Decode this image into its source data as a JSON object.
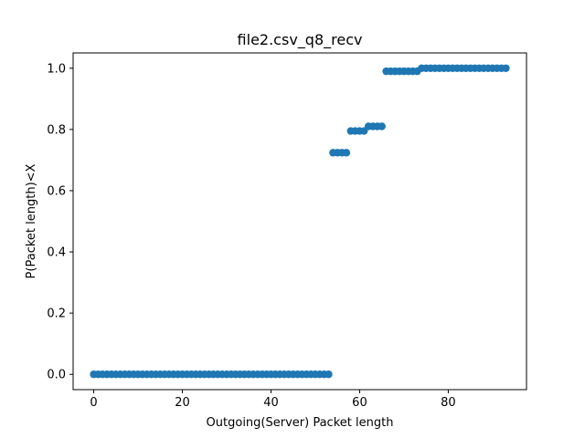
{
  "chart_data": {
    "type": "scatter",
    "title": "file2.csv_q8_recv",
    "xlabel": "Outgoing(Server) Packet length",
    "ylabel": "P(Packet length)<X",
    "xlim": [
      -4.65,
      97.65
    ],
    "ylim": [
      -0.05,
      1.05
    ],
    "xticks": [
      0,
      20,
      40,
      60,
      80
    ],
    "xtick_labels": [
      "0",
      "20",
      "40",
      "60",
      "80"
    ],
    "yticks": [
      0.0,
      0.2,
      0.4,
      0.6,
      0.8,
      1.0
    ],
    "ytick_labels": [
      "0.0",
      "0.2",
      "0.4",
      "0.6",
      "0.8",
      "1.0"
    ],
    "grid": false,
    "legend": "none",
    "marker_color": "#1f77b4",
    "series": [
      {
        "points": [
          [
            0,
            0
          ],
          [
            1,
            0
          ],
          [
            2,
            0
          ],
          [
            3,
            0
          ],
          [
            4,
            0
          ],
          [
            5,
            0
          ],
          [
            6,
            0
          ],
          [
            7,
            0
          ],
          [
            8,
            0
          ],
          [
            9,
            0
          ],
          [
            10,
            0
          ],
          [
            11,
            0
          ],
          [
            12,
            0
          ],
          [
            13,
            0
          ],
          [
            14,
            0
          ],
          [
            15,
            0
          ],
          [
            16,
            0
          ],
          [
            17,
            0
          ],
          [
            18,
            0
          ],
          [
            19,
            0
          ],
          [
            20,
            0
          ],
          [
            21,
            0
          ],
          [
            22,
            0
          ],
          [
            23,
            0
          ],
          [
            24,
            0
          ],
          [
            25,
            0
          ],
          [
            26,
            0
          ],
          [
            27,
            0
          ],
          [
            28,
            0
          ],
          [
            29,
            0
          ],
          [
            30,
            0
          ],
          [
            31,
            0
          ],
          [
            32,
            0
          ],
          [
            33,
            0
          ],
          [
            34,
            0
          ],
          [
            35,
            0
          ],
          [
            36,
            0
          ],
          [
            37,
            0
          ],
          [
            38,
            0
          ],
          [
            39,
            0
          ],
          [
            40,
            0
          ],
          [
            41,
            0
          ],
          [
            42,
            0
          ],
          [
            43,
            0
          ],
          [
            44,
            0
          ],
          [
            45,
            0
          ],
          [
            46,
            0
          ],
          [
            47,
            0
          ],
          [
            48,
            0
          ],
          [
            49,
            0
          ],
          [
            50,
            0
          ],
          [
            51,
            0
          ],
          [
            52,
            0
          ],
          [
            53,
            0
          ],
          [
            54,
            0.724
          ],
          [
            55,
            0.724
          ],
          [
            56,
            0.724
          ],
          [
            57,
            0.724
          ],
          [
            58,
            0.795
          ],
          [
            59,
            0.795
          ],
          [
            60,
            0.795
          ],
          [
            61,
            0.795
          ],
          [
            62,
            0.81
          ],
          [
            63,
            0.81
          ],
          [
            64,
            0.81
          ],
          [
            65,
            0.81
          ],
          [
            66,
            0.99
          ],
          [
            67,
            0.99
          ],
          [
            68,
            0.99
          ],
          [
            69,
            0.99
          ],
          [
            70,
            0.99
          ],
          [
            71,
            0.99
          ],
          [
            72,
            0.99
          ],
          [
            73,
            0.99
          ],
          [
            74,
            1.0
          ],
          [
            75,
            1.0
          ],
          [
            76,
            1.0
          ],
          [
            77,
            1.0
          ],
          [
            78,
            1.0
          ],
          [
            79,
            1.0
          ],
          [
            80,
            1.0
          ],
          [
            81,
            1.0
          ],
          [
            82,
            1.0
          ],
          [
            83,
            1.0
          ],
          [
            84,
            1.0
          ],
          [
            85,
            1.0
          ],
          [
            86,
            1.0
          ],
          [
            87,
            1.0
          ],
          [
            88,
            1.0
          ],
          [
            89,
            1.0
          ],
          [
            90,
            1.0
          ],
          [
            91,
            1.0
          ],
          [
            92,
            1.0
          ],
          [
            93,
            1.0
          ]
        ]
      }
    ]
  }
}
